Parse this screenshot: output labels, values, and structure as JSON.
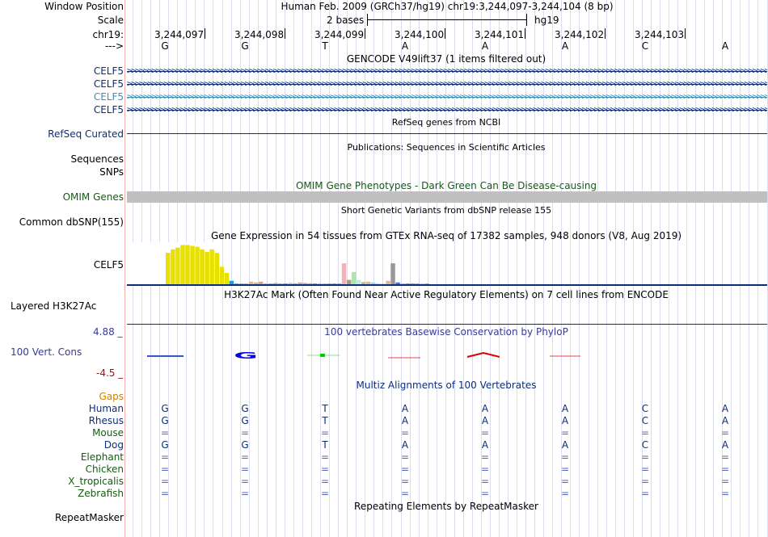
{
  "header": {
    "window_position_label": "Window Position",
    "scale_label": "Scale",
    "chrom_label": "chr19:",
    "strand_label": "--->",
    "position_text": "Human Feb. 2009 (GRCh37/hg19)   chr19:3,244,097-3,244,104 (8 bp)",
    "scale_text": "2 bases",
    "assembly": "hg19"
  },
  "ruler": {
    "ticks": [
      "3,244,097",
      "3,244,098",
      "3,244,099",
      "3,244,100",
      "3,244,101",
      "3,244,102",
      "3,244,103"
    ],
    "bases": [
      "G",
      "G",
      "T",
      "A",
      "A",
      "A",
      "C",
      "A"
    ]
  },
  "gencode": {
    "title": "GENCODE V49lift37 (1 items filtered out)",
    "tracks": [
      {
        "name": "CELF5",
        "color": "#0b2f7a"
      },
      {
        "name": "CELF5",
        "color": "#0b2f7a"
      },
      {
        "name": "CELF5",
        "color": "#3a8fb7"
      },
      {
        "name": "CELF5",
        "color": "#0b2f7a"
      }
    ]
  },
  "refseq": {
    "label": "RefSeq Curated",
    "title": "RefSeq genes from NCBI"
  },
  "publications": {
    "label": "Sequences",
    "title": "Publications: Sequences in Scientific Articles"
  },
  "snps": {
    "label": "SNPs"
  },
  "omim": {
    "label": "OMIM Genes",
    "title": "OMIM Gene Phenotypes - Dark Green Can Be Disease-causing",
    "color": "#0f5f0f"
  },
  "dbsnp": {
    "label": "Common dbSNP(155)",
    "title": "Short Genetic Variants from dbSNP release 155"
  },
  "gtex": {
    "label": "CELF5",
    "title": "Gene Expression in 54 tissues from GTEx RNA-seq of 17382 samples, 948 donors (V8, Aug 2019)"
  },
  "chart_data": {
    "type": "bar",
    "title": "Gene Expression in 54 tissues from GTEx RNA-seq of 17382 samples, 948 donors (V8, Aug 2019)",
    "xlabel": "",
    "ylabel": "",
    "ylim": [
      0,
      1
    ],
    "values": [
      0.72,
      0.8,
      0.84,
      0.9,
      0.9,
      0.88,
      0.86,
      0.8,
      0.74,
      0.8,
      0.72,
      0.4,
      0.26,
      0.08,
      0.01,
      0.01,
      0.02,
      0.06,
      0.04,
      0.06,
      0.02,
      0.01,
      0.03,
      0.02,
      0.01,
      0.03,
      0.02,
      0.04,
      0.03,
      0.02,
      0.01,
      0.02,
      0.01,
      0.01,
      0.01,
      0.02,
      0.48,
      0.1,
      0.28,
      0.1,
      0.05,
      0.06,
      0.04,
      0.02,
      0.02,
      0.08,
      0.48,
      0.04,
      0.01,
      0.02,
      0.01,
      0.01,
      0.01,
      0.01
    ],
    "colors": [
      "#e8e100",
      "#e8e100",
      "#e8e100",
      "#e8e100",
      "#e8e100",
      "#e8e100",
      "#e8e100",
      "#e8e100",
      "#e8e100",
      "#e8e100",
      "#e8e100",
      "#e8e100",
      "#e8e100",
      "#1ea0d0",
      "#7a9ac8",
      "#9fb0c8",
      "#c8b898",
      "#e8b88a",
      "#d4b090",
      "#ccaa88",
      "#bbbbbb",
      "#aaaaaa",
      "#cc99cc",
      "#bbaacc",
      "#aa88bb",
      "#ddaadd",
      "#99bb99",
      "#ccaa99",
      "#dd9999",
      "#99aacc",
      "#7799bb",
      "#aaccaa",
      "#bbbbdd",
      "#bb99bb",
      "#dd88aa",
      "#c8a888",
      "#f5b0b8",
      "#a8a078",
      "#a8e8a8",
      "#bbeedd",
      "#c8b888",
      "#d8c088",
      "#aaccee",
      "#ccccff",
      "#ffcc99",
      "#ddbb99",
      "#999999",
      "#4477cc",
      "#aabbdd",
      "#cc8888",
      "#88aa88",
      "#bbaa77",
      "#cccccc",
      "#aaaaaa"
    ]
  },
  "h3k27ac": {
    "label": "Layered H3K27Ac",
    "title": "H3K27Ac Mark (Often Found Near Active Regulatory Elements) on 7 cell lines from ENCODE"
  },
  "conservation": {
    "label": "100 Vert. Cons",
    "max_label": "4.88 _",
    "min_label": "-4.5 _",
    "title": "100 vertebrates Basewise Conservation by PhyloP"
  },
  "multiz": {
    "title": "Multiz Alignments of 100 Vertebrates",
    "gaps_label": "Gaps",
    "species": [
      {
        "name": "Human",
        "bases": [
          "G",
          "G",
          "T",
          "A",
          "A",
          "A",
          "C",
          "A"
        ],
        "color": "#0b2f7a"
      },
      {
        "name": "Rhesus",
        "bases": [
          "G",
          "G",
          "T",
          "A",
          "A",
          "A",
          "C",
          "A"
        ],
        "color": "#0b2f7a"
      },
      {
        "name": "Mouse",
        "bases": [
          "=",
          "=",
          "=",
          "=",
          "=",
          "=",
          "=",
          "="
        ],
        "color": "#0f5f0f"
      },
      {
        "name": "Dog",
        "bases": [
          "G",
          "G",
          "T",
          "A",
          "A",
          "A",
          "C",
          "A"
        ],
        "color": "#0b2f7a"
      },
      {
        "name": "Elephant",
        "bases": [
          "=",
          "=",
          "=",
          "=",
          "=",
          "=",
          "=",
          "="
        ],
        "color": "#0f5f0f"
      },
      {
        "name": "Chicken",
        "bases": [
          "=",
          "=",
          "=",
          "=",
          "=",
          "=",
          "=",
          "="
        ],
        "color": "#0f5f0f"
      },
      {
        "name": "X_tropicalis",
        "bases": [
          "=",
          "=",
          "=",
          "=",
          "=",
          "=",
          "=",
          "="
        ],
        "color": "#0f5f0f"
      },
      {
        "name": "Zebrafish",
        "bases": [
          "=",
          "=",
          "=",
          "=",
          "=",
          "=",
          "=",
          "="
        ],
        "color": "#0f5f0f"
      }
    ]
  },
  "repeatmasker": {
    "label": "RepeatMasker",
    "title": "Repeating Elements by RepeatMasker"
  },
  "colors": {
    "navy": "#0b2f7a",
    "green": "#0f5f0f",
    "orange": "#d08000",
    "maroon": "#8b1a1a",
    "cons_blue": "#3a3a9a"
  }
}
